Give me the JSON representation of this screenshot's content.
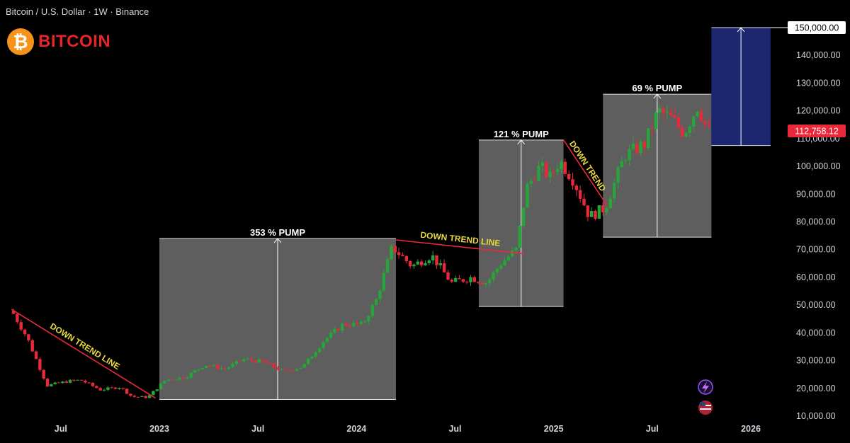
{
  "header": {
    "symbol": "Bitcoin / U.S. Dollar · 1W · Binance"
  },
  "logo": {
    "text": "BITCOIN",
    "icon": "bitcoin-coin-icon"
  },
  "colors": {
    "up": "#26a53a",
    "down": "#e8293a",
    "box": "#6e6e6e",
    "target_box": "#1e2a7a",
    "trendline": "#e8293a",
    "annotation": "#e8d83c",
    "price_tag": "#e8293a"
  },
  "chart_data": {
    "type": "candlestick",
    "title": "",
    "xlabel": "",
    "ylabel": "",
    "ylim": [
      10000,
      155000
    ],
    "x_ticks": [
      "Jul",
      "2023",
      "Jul",
      "2024",
      "Jul",
      "2025",
      "Jul",
      "2026"
    ],
    "y_ticks": [
      "10,000.00",
      "20,000.00",
      "30,000.00",
      "40,000.00",
      "50,000.00",
      "60,000.00",
      "70,000.00",
      "80,000.00",
      "90,000.00",
      "100,000.00",
      "110,000.00",
      "120,000.00",
      "130,000.00",
      "140,000.00"
    ],
    "target_price_label": "150,000.00",
    "current_price_label": "112,758.12",
    "current_price": 112758.12,
    "target_price": 150000,
    "price_path": [
      [
        2022.27,
        48000
      ],
      [
        2022.35,
        38000
      ],
      [
        2022.45,
        21000
      ],
      [
        2022.55,
        22500
      ],
      [
        2022.62,
        23000
      ],
      [
        2022.72,
        19500
      ],
      [
        2022.82,
        20500
      ],
      [
        2022.88,
        17000
      ],
      [
        2022.96,
        16800
      ],
      [
        2023.05,
        23000
      ],
      [
        2023.15,
        24000
      ],
      [
        2023.25,
        28500
      ],
      [
        2023.35,
        27000
      ],
      [
        2023.45,
        30500
      ],
      [
        2023.55,
        29500
      ],
      [
        2023.65,
        26000
      ],
      [
        2023.75,
        28000
      ],
      [
        2023.85,
        37000
      ],
      [
        2023.95,
        43000
      ],
      [
        2024.05,
        43000
      ],
      [
        2024.12,
        52000
      ],
      [
        2024.2,
        71000
      ],
      [
        2024.3,
        64000
      ],
      [
        2024.4,
        68000
      ],
      [
        2024.5,
        58000
      ],
      [
        2024.6,
        60000
      ],
      [
        2024.68,
        58000
      ],
      [
        2024.75,
        65000
      ],
      [
        2024.83,
        70000
      ],
      [
        2024.88,
        92000
      ],
      [
        2024.95,
        100000
      ],
      [
        2025.0,
        96000
      ],
      [
        2025.05,
        102000
      ],
      [
        2025.12,
        95000
      ],
      [
        2025.2,
        82000
      ],
      [
        2025.28,
        85000
      ],
      [
        2025.38,
        104000
      ],
      [
        2025.48,
        108000
      ],
      [
        2025.55,
        120000
      ],
      [
        2025.62,
        117000
      ],
      [
        2025.68,
        112000
      ],
      [
        2025.75,
        122000
      ],
      [
        2025.8,
        112758
      ]
    ],
    "annotations": [
      {
        "text": "DOWN TREND LINE"
      },
      {
        "text": "353 % PUMP"
      },
      {
        "text": "DOWN TREND LINE"
      },
      {
        "text": "121 % PUMP"
      },
      {
        "text": "DOWN TREND"
      },
      {
        "text": "69 % PUMP"
      }
    ],
    "boxes": [
      {
        "start": 2023.0,
        "end": 2024.2,
        "low": 16000,
        "high": 74000,
        "label": "353 % PUMP"
      },
      {
        "start": 2024.62,
        "end": 2025.05,
        "low": 49500,
        "high": 109500,
        "label": "121 % PUMP"
      },
      {
        "start": 2025.25,
        "end": 2025.8,
        "low": 74500,
        "high": 126000,
        "label": "69 % PUMP"
      },
      {
        "start": 2025.8,
        "end": 2026.1,
        "low": 107500,
        "high": 150000,
        "label": ""
      }
    ],
    "trend_lines": [
      {
        "from": [
          2022.25,
          48500
        ],
        "to": [
          2022.98,
          16500
        ],
        "label": "DOWN TREND LINE"
      },
      {
        "from": [
          2024.2,
          73500
        ],
        "to": [
          2024.85,
          68500
        ],
        "label": "DOWN TREND LINE"
      },
      {
        "from": [
          2025.05,
          109500
        ],
        "to": [
          2025.27,
          86000
        ],
        "label": "DOWN TREND"
      }
    ]
  }
}
